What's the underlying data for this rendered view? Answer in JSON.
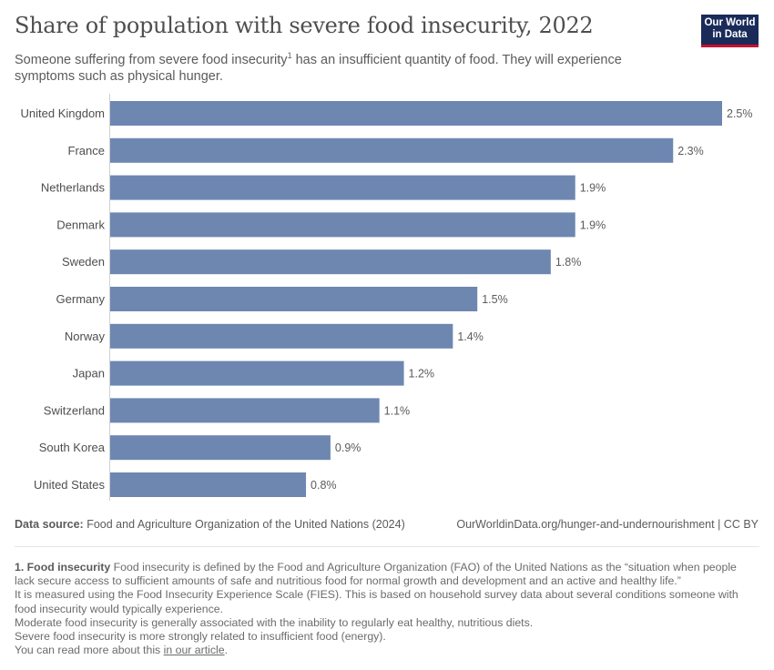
{
  "header": {
    "title": "Share of population with severe food insecurity, 2022",
    "subtitle_pre": "Someone suffering from severe food insecurity",
    "subtitle_sup": "1",
    "subtitle_post": " has an insufficient quantity of food. They will experience symptoms such as physical hunger.",
    "logo_line1": "Our World",
    "logo_line2": "in Data"
  },
  "chart_data": {
    "type": "bar",
    "orientation": "horizontal",
    "title": "Share of population with severe food insecurity, 2022",
    "xlabel": "",
    "ylabel": "",
    "unit": "%",
    "xlim": [
      0,
      2.5
    ],
    "grid": false,
    "categories": [
      "United Kingdom",
      "France",
      "Netherlands",
      "Denmark",
      "Sweden",
      "Germany",
      "Norway",
      "Japan",
      "Switzerland",
      "South Korea",
      "United States"
    ],
    "values": [
      2.5,
      2.3,
      1.9,
      1.9,
      1.8,
      1.5,
      1.4,
      1.2,
      1.1,
      0.9,
      0.8
    ],
    "labels": [
      "2.5%",
      "2.3%",
      "1.9%",
      "1.9%",
      "1.8%",
      "1.5%",
      "1.4%",
      "1.2%",
      "1.1%",
      "0.9%",
      "0.8%"
    ],
    "color": "#6d87b1"
  },
  "footer": {
    "source_label": "Data source:",
    "source_text": "Food and Agriculture Organization of the United Nations (2024)",
    "credit": "OurWorldinData.org/hunger-and-undernourishment | CC BY",
    "note_title": "1. Food insecurity",
    "note_line1": "Food insecurity is defined by the Food and Agriculture Organization (FAO) of the United Nations as the “situation when people lack secure access to sufficient amounts of safe and nutritious food for normal growth and development and an active and healthy life.”",
    "note_line2": "It is measured using the Food Insecurity Experience Scale (FIES). This is based on household survey data about several conditions someone with food insecurity would typically experience.",
    "note_line3": "Moderate food insecurity is generally associated with the inability to regularly eat healthy, nutritious diets.",
    "note_line4": "Severe food insecurity is more strongly related to insufficient food (energy).",
    "note_line5_pre": "You can read more about this ",
    "note_link": "in our article",
    "note_line5_post": "."
  }
}
